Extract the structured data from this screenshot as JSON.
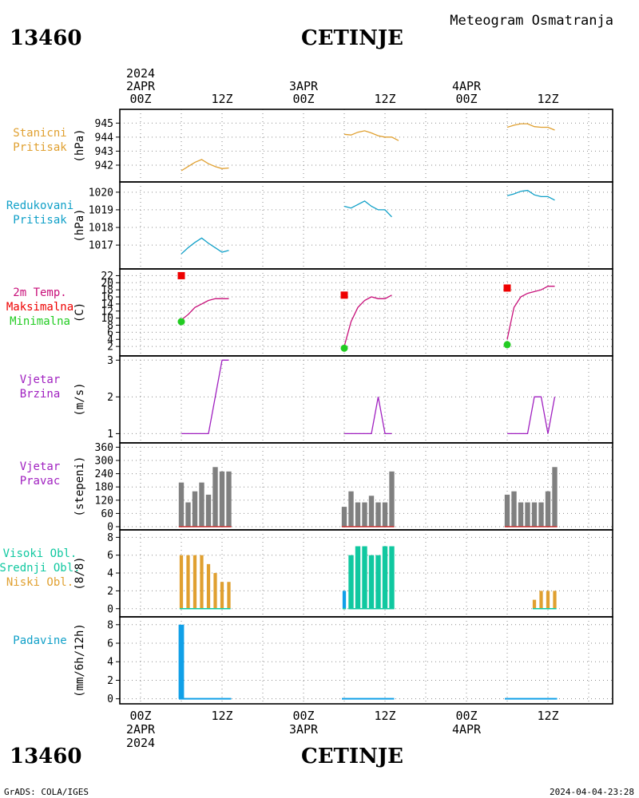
{
  "header": {
    "station_id": "13460",
    "station_name": "CETINJE",
    "title": "Meteogram Osmatranja"
  },
  "footer": {
    "credit": "GrADS: COLA/IGES",
    "timestamp": "2024-04-04-23:28"
  },
  "time_axis": {
    "top_labels": [
      {
        "hour": 0,
        "lines": [
          "2024",
          "2APR",
          "00Z"
        ]
      },
      {
        "hour": 12,
        "lines": [
          "12Z"
        ]
      },
      {
        "hour": 24,
        "lines": [
          "3APR",
          "00Z"
        ]
      },
      {
        "hour": 36,
        "lines": [
          "12Z"
        ]
      },
      {
        "hour": 48,
        "lines": [
          "4APR",
          "00Z"
        ]
      },
      {
        "hour": 60,
        "lines": [
          "12Z"
        ]
      }
    ],
    "bottom_labels": [
      {
        "hour": 0,
        "lines": [
          "00Z",
          "2APR",
          "2024"
        ]
      },
      {
        "hour": 12,
        "lines": [
          "12Z"
        ]
      },
      {
        "hour": 24,
        "lines": [
          "00Z",
          "3APR"
        ]
      },
      {
        "hour": 36,
        "lines": [
          "12Z"
        ]
      },
      {
        "hour": 48,
        "lines": [
          "00Z",
          "4APR"
        ]
      },
      {
        "hour": 60,
        "lines": [
          "12Z"
        ]
      }
    ]
  },
  "colors": {
    "orange": "#e0a030",
    "cyan": "#10a0c8",
    "magenta": "#c8107a",
    "red": "#ee0000",
    "green": "#22cc22",
    "purple": "#a020c0",
    "gray": "#808080",
    "teal": "#10c8a0",
    "blue": "#10a0e8",
    "dark_red": "#c83030"
  },
  "chart_data": [
    {
      "type": "line",
      "panel": "stanicni-pritisak",
      "label_lines": [
        {
          "text": "Stanicni",
          "color": "#e0a030"
        },
        {
          "text": "Pritisak",
          "color": "#e0a030"
        }
      ],
      "ylabel": "(hPa)",
      "ylim": [
        941.2,
        945.3
      ],
      "yticks": [
        942,
        943,
        944,
        945
      ],
      "series": [
        {
          "color": "#e0a030",
          "segments": [
            [
              [
                6,
                941.6
              ],
              [
                7,
                941.9
              ],
              [
                8,
                942.2
              ],
              [
                9,
                942.4
              ],
              [
                10,
                942.1
              ],
              [
                11,
                941.9
              ],
              [
                12,
                941.75
              ],
              [
                13,
                941.8
              ]
            ],
            [
              [
                30,
                944.2
              ],
              [
                31,
                944.15
              ],
              [
                32,
                944.35
              ],
              [
                33,
                944.45
              ],
              [
                34,
                944.3
              ],
              [
                35,
                944.1
              ],
              [
                36,
                944.0
              ],
              [
                37,
                944.0
              ],
              [
                38,
                943.75
              ]
            ],
            [
              [
                54,
                944.7
              ],
              [
                55,
                944.85
              ],
              [
                56,
                944.95
              ],
              [
                57,
                944.95
              ],
              [
                58,
                944.75
              ],
              [
                59,
                944.7
              ],
              [
                60,
                944.7
              ],
              [
                61,
                944.5
              ]
            ]
          ]
        }
      ]
    },
    {
      "type": "line",
      "panel": "redukovani-pritisak",
      "label_lines": [
        {
          "text": "Redukovani",
          "color": "#10a0c8"
        },
        {
          "text": "Pritisak",
          "color": "#10a0c8"
        }
      ],
      "ylabel": "(hPa)",
      "ylim": [
        1016.1,
        1020.4
      ],
      "yticks": [
        1017,
        1018,
        1019,
        1020
      ],
      "series": [
        {
          "color": "#10a0c8",
          "segments": [
            [
              [
                6,
                1016.5
              ],
              [
                7,
                1016.85
              ],
              [
                8,
                1017.15
              ],
              [
                9,
                1017.4
              ],
              [
                10,
                1017.1
              ],
              [
                11,
                1016.85
              ],
              [
                12,
                1016.6
              ],
              [
                13,
                1016.7
              ]
            ],
            [
              [
                30,
                1019.2
              ],
              [
                31,
                1019.1
              ],
              [
                32,
                1019.3
              ],
              [
                33,
                1019.5
              ],
              [
                34,
                1019.2
              ],
              [
                35,
                1019.0
              ],
              [
                36,
                1019.0
              ],
              [
                37,
                1018.6
              ]
            ],
            [
              [
                54,
                1019.8
              ],
              [
                55,
                1019.9
              ],
              [
                56,
                1020.05
              ],
              [
                57,
                1020.1
              ],
              [
                58,
                1019.85
              ],
              [
                59,
                1019.75
              ],
              [
                60,
                1019.75
              ],
              [
                61,
                1019.55
              ]
            ]
          ]
        }
      ]
    },
    {
      "type": "line",
      "panel": "temperatura",
      "label_lines": [
        {
          "text": "2m Temp.",
          "color": "#c8107a"
        },
        {
          "text": "Maksimalna",
          "color": "#ee0000"
        },
        {
          "text": "Minimalna",
          "color": "#22cc22"
        }
      ],
      "ylabel": "(C)",
      "ylim": [
        0,
        23
      ],
      "yticks": [
        2,
        4,
        6,
        8,
        10,
        12,
        14,
        16,
        18,
        20,
        22
      ],
      "series": [
        {
          "color": "#c8107a",
          "segments": [
            [
              [
                6,
                9.5
              ],
              [
                7,
                11
              ],
              [
                8,
                13
              ],
              [
                9,
                14
              ],
              [
                10,
                15
              ],
              [
                11,
                15.5
              ],
              [
                12,
                15.5
              ],
              [
                13,
                15.5
              ]
            ],
            [
              [
                30,
                2
              ],
              [
                31,
                9
              ],
              [
                32,
                13
              ],
              [
                33,
                15
              ],
              [
                34,
                16
              ],
              [
                35,
                15.5
              ],
              [
                36,
                15.5
              ],
              [
                37,
                16.5
              ]
            ],
            [
              [
                54,
                4
              ],
              [
                55,
                13
              ],
              [
                56,
                16
              ],
              [
                57,
                17
              ],
              [
                58,
                17.5
              ],
              [
                59,
                18
              ],
              [
                60,
                19
              ],
              [
                61,
                19
              ]
            ]
          ]
        }
      ],
      "max_markers": {
        "color": "#ee0000",
        "points": [
          [
            6,
            22
          ],
          [
            30,
            16.5
          ],
          [
            54,
            18.5
          ]
        ]
      },
      "min_markers": {
        "color": "#22cc22",
        "points": [
          [
            6,
            9
          ],
          [
            30,
            1.5
          ],
          [
            54,
            2.5
          ]
        ]
      }
    },
    {
      "type": "line",
      "panel": "vjetar-brzina",
      "label_lines": [
        {
          "text": "Vjetar",
          "color": "#a020c0"
        },
        {
          "text": "Brzina",
          "color": "#a020c0"
        }
      ],
      "ylabel": "(m/s)",
      "ylim": [
        0.9,
        3.05
      ],
      "yticks": [
        1,
        2,
        3
      ],
      "series": [
        {
          "color": "#a020c0",
          "segments": [
            [
              [
                6,
                1
              ],
              [
                10,
                1
              ],
              [
                12,
                3
              ],
              [
                13,
                3
              ]
            ],
            [
              [
                30,
                1
              ],
              [
                34,
                1
              ],
              [
                35,
                2
              ],
              [
                36,
                1
              ],
              [
                37,
                1
              ]
            ],
            [
              [
                54,
                1
              ],
              [
                57,
                1
              ],
              [
                58,
                2
              ],
              [
                59,
                2
              ],
              [
                60,
                1
              ],
              [
                61,
                2
              ]
            ]
          ]
        }
      ]
    },
    {
      "type": "bar",
      "panel": "vjetar-pravac",
      "label_lines": [
        {
          "text": "Vjetar",
          "color": "#a020c0"
        },
        {
          "text": "Pravac",
          "color": "#a020c0"
        }
      ],
      "ylabel": "(stepeni)",
      "ylim": [
        0,
        365
      ],
      "yticks": [
        0,
        60,
        120,
        180,
        240,
        300,
        360
      ],
      "bar_width_hours": 0.75,
      "baseline_color": "#c83030",
      "bars": [
        {
          "color": "#808080",
          "hours": [
            6,
            7,
            8,
            9,
            10,
            11,
            12,
            13
          ],
          "values": [
            200,
            110,
            160,
            200,
            145,
            270,
            250,
            250
          ]
        },
        {
          "color": "#808080",
          "hours": [
            30,
            31,
            32,
            33,
            34,
            35,
            36,
            37
          ],
          "values": [
            90,
            160,
            110,
            110,
            140,
            110,
            110,
            250
          ]
        },
        {
          "color": "#808080",
          "hours": [
            54,
            55,
            56,
            57,
            58,
            59,
            60,
            61
          ],
          "values": [
            145,
            160,
            110,
            110,
            110,
            110,
            160,
            270
          ]
        }
      ]
    },
    {
      "type": "bar",
      "panel": "oblacnost",
      "label_lines": [
        {
          "text": "Visoki Obl.",
          "color": "#10c8a0"
        },
        {
          "text": "Srednji Obl.",
          "color": "#10c8a0"
        },
        {
          "text": "Niski Obl.",
          "color": "#e0a030"
        }
      ],
      "ylabel": "(8/8)",
      "ylim": [
        -0.2,
        8.3
      ],
      "yticks": [
        0,
        2,
        4,
        6,
        8
      ],
      "bar_width_hours": 0.5,
      "baseline_color": "#10c8a0",
      "bars": [
        {
          "color": "#e0a030",
          "hours": [
            6,
            7,
            8,
            9,
            10,
            11,
            12,
            13
          ],
          "values": [
            6,
            6,
            6,
            6,
            5,
            4,
            3,
            3
          ]
        },
        {
          "color": "#10a0e8",
          "hours": [
            30
          ],
          "values": [
            2
          ]
        },
        {
          "color": "#10c8a0",
          "hours": [
            31,
            32,
            33,
            34,
            35,
            36,
            37
          ],
          "values": [
            6,
            7,
            7,
            6,
            6,
            7,
            7
          ],
          "width_hours": 0.75
        },
        {
          "color": "#e0a030",
          "hours": [
            58,
            59,
            60,
            61
          ],
          "values": [
            1,
            2,
            2,
            2
          ]
        }
      ]
    },
    {
      "type": "bar",
      "panel": "padavine",
      "label_lines": [
        {
          "text": "Padavine",
          "color": "#10a0c8"
        }
      ],
      "ylabel": "(mm/6h/12h)",
      "ylim": [
        -0.2,
        8.5
      ],
      "yticks": [
        0,
        2,
        4,
        6,
        8
      ],
      "bar_width_hours": 0.8,
      "baseline_color": "#10a0e8",
      "baseline_ranges": [
        [
          6,
          13
        ],
        [
          30,
          37
        ],
        [
          54,
          61
        ]
      ],
      "bars": [
        {
          "color": "#10a0e8",
          "hours": [
            6
          ],
          "values": [
            8
          ]
        }
      ]
    }
  ]
}
